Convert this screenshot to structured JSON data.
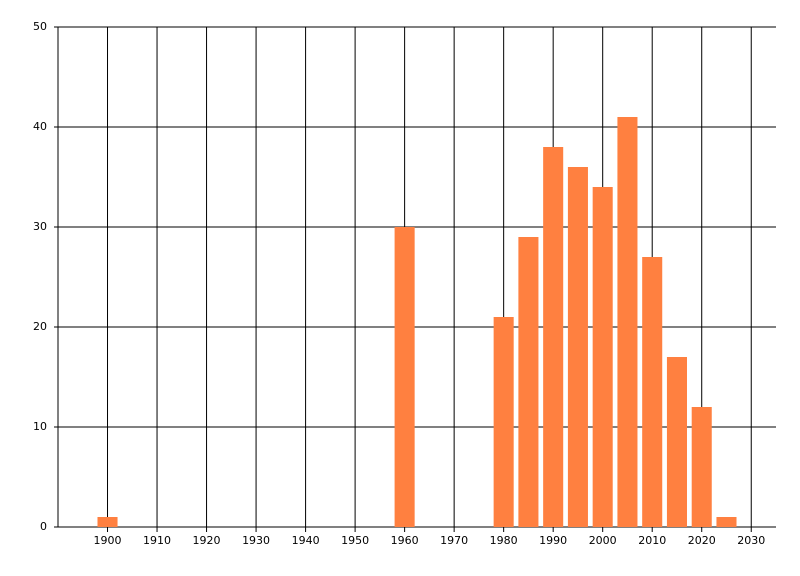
{
  "chart_data": {
    "type": "bar",
    "x": [
      1900,
      1960,
      1980,
      1985,
      1990,
      1995,
      2000,
      2005,
      2010,
      2015,
      2020,
      2025
    ],
    "values": [
      1,
      30,
      21,
      29,
      38,
      36,
      34,
      41,
      27,
      17,
      12,
      1
    ],
    "color": "#ff8040",
    "xlim": [
      1890,
      2035
    ],
    "xticks": [
      1900,
      1910,
      1920,
      1930,
      1940,
      1950,
      1960,
      1970,
      1980,
      1990,
      2000,
      2010,
      2020,
      2030
    ],
    "ylim": [
      0,
      50
    ],
    "yticks": [
      0,
      10,
      20,
      30,
      40,
      50
    ],
    "grid": true
  }
}
